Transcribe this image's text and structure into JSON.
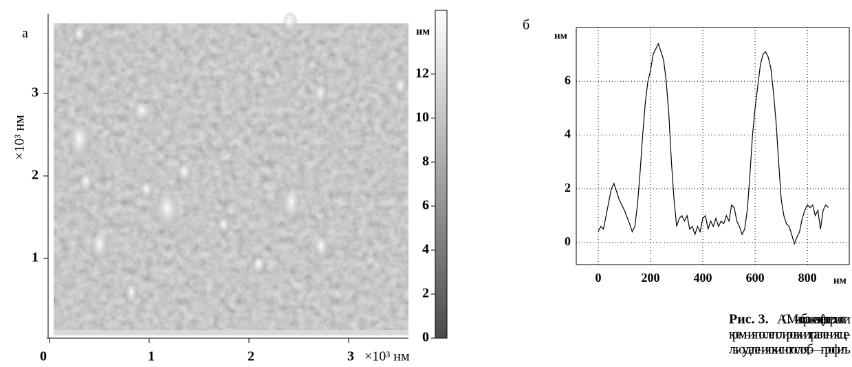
{
  "chart_data": [
    {
      "type": "image",
      "label": "а",
      "xlabel": "×10³ нм",
      "ylabel": "×10³ нм",
      "xlim": [
        0,
        3.6
      ],
      "ylim": [
        0,
        4.0
      ],
      "xticks": [
        0,
        1,
        2,
        3
      ],
      "yticks": [
        1,
        2,
        3
      ],
      "colorbar": {
        "label": "нм",
        "lim": [
          0,
          14.9
        ],
        "ticks": [
          0,
          2,
          4,
          6,
          8,
          10,
          12
        ],
        "colors": [
          "#4a4a4a",
          "#ffffff"
        ]
      }
    },
    {
      "type": "line",
      "label": "б",
      "xlabel": "нм",
      "ylabel": "нм",
      "xlim": [
        -84,
        960
      ],
      "ylim": [
        -0.82,
        8.0
      ],
      "xticks": [
        0,
        200,
        400,
        600,
        800
      ],
      "yticks": [
        0,
        2,
        4,
        6
      ],
      "grid": true,
      "color": "#000000",
      "x": [
        0,
        10,
        20,
        30,
        40,
        50,
        60,
        70,
        80,
        100,
        120,
        130,
        140,
        150,
        160,
        170,
        180,
        190,
        200,
        210,
        220,
        230,
        240,
        250,
        260,
        270,
        280,
        290,
        300,
        310,
        320,
        330,
        340,
        350,
        360,
        370,
        380,
        390,
        400,
        410,
        420,
        430,
        440,
        450,
        460,
        470,
        480,
        490,
        500,
        510,
        520,
        530,
        540,
        550,
        560,
        570,
        580,
        590,
        600,
        610,
        620,
        630,
        640,
        650,
        660,
        670,
        680,
        690,
        700,
        710,
        720,
        730,
        740,
        750,
        760,
        770,
        780,
        790,
        800,
        810,
        820,
        830,
        840,
        850,
        860,
        870,
        880
      ],
      "values": [
        0.4,
        0.6,
        0.5,
        1.0,
        1.5,
        2.0,
        2.2,
        1.9,
        1.6,
        1.2,
        0.7,
        0.4,
        0.6,
        1.4,
        2.6,
        4.0,
        5.2,
        6.0,
        6.4,
        7.0,
        7.2,
        7.4,
        7.1,
        6.8,
        6.0,
        4.8,
        3.0,
        1.6,
        0.6,
        0.9,
        1.0,
        0.8,
        1.0,
        0.5,
        0.6,
        0.3,
        0.6,
        0.4,
        0.9,
        1.0,
        0.5,
        0.8,
        0.6,
        0.9,
        0.6,
        0.8,
        0.7,
        1.0,
        0.8,
        1.4,
        1.3,
        0.8,
        0.6,
        0.3,
        0.5,
        1.2,
        2.5,
        4.0,
        5.0,
        5.8,
        6.6,
        7.0,
        7.1,
        6.9,
        6.5,
        5.6,
        4.5,
        3.0,
        1.6,
        1.0,
        0.7,
        0.6,
        0.3,
        -0.05,
        0.2,
        0.4,
        0.9,
        1.2,
        1.4,
        1.3,
        1.4,
        1.0,
        1.2,
        0.5,
        1.2,
        1.4,
        1.3
      ]
    }
  ],
  "caption": {
    "label": "Рис. 3.",
    "lines": [
      "АСМ-изображение (а) поверхности",
      "кремния после полировки и травления с це-",
      "лью удаления окисного слоя; б — профиль"
    ]
  }
}
